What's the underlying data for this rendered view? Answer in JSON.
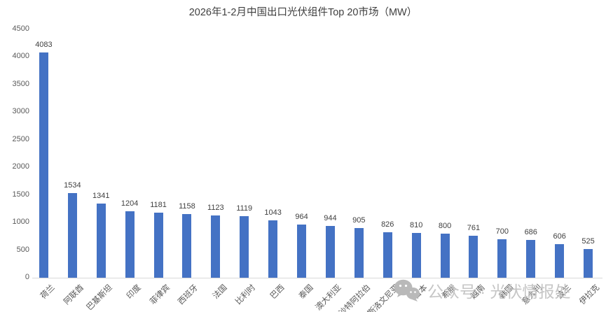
{
  "chart_data": {
    "type": "bar",
    "title": "2026年1-2月中国出口光伏组件Top 20市场（MW）",
    "categories": [
      "荷兰",
      "阿联酋",
      "巴基斯坦",
      "印度",
      "菲律宾",
      "西班牙",
      "法国",
      "比利时",
      "巴西",
      "泰国",
      "澳大利亚",
      "沙特阿拉伯",
      "斯洛文尼亚",
      "日本",
      "希腊",
      "越南",
      "韩国",
      "意大利",
      "波兰",
      "伊拉克"
    ],
    "values": [
      4083,
      1534,
      1341,
      1204,
      1181,
      1158,
      1123,
      1119,
      1043,
      964,
      944,
      905,
      826,
      810,
      800,
      761,
      700,
      686,
      606,
      525
    ],
    "xlabel": "",
    "ylabel": "",
    "ylim": [
      0,
      4500
    ],
    "yticks": [
      0,
      500,
      1000,
      1500,
      2000,
      2500,
      3000,
      3500,
      4000,
      4500
    ],
    "grid": false,
    "legend": null,
    "data_labels": true,
    "bar_color": "#4472C4",
    "axis_label_color": "#595959",
    "value_label_color": "#404040"
  },
  "watermark": {
    "icon": "wechat-icon",
    "text": "公众号 · 光伏情报处"
  }
}
